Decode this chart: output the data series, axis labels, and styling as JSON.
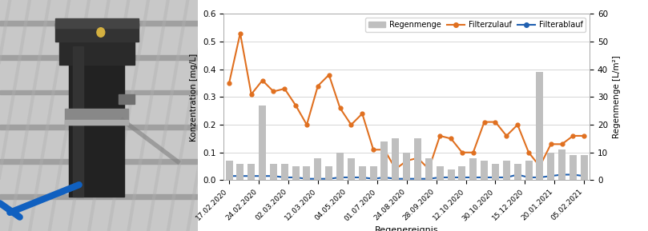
{
  "x_labels": [
    "17.02.2020",
    "24.02.2020",
    "02.03.2020",
    "12.03.2020",
    "04.05.2020",
    "01.07.2020",
    "24.08.2020",
    "28.09.2020",
    "12.10.2020",
    "30.10.2020",
    "15.12.2020",
    "20.01.2021",
    "05.02.2021"
  ],
  "filterzulauf": [
    0.35,
    0.53,
    0.31,
    0.36,
    0.32,
    0.33,
    0.27,
    0.2,
    0.34,
    0.38,
    0.26,
    0.2,
    0.24,
    0.11,
    0.11,
    0.04,
    0.07,
    0.08,
    0.04,
    0.16,
    0.15,
    0.1,
    0.1,
    0.21,
    0.21,
    0.16,
    0.2,
    0.1,
    0.05,
    0.13,
    0.13,
    0.16,
    0.16
  ],
  "filterablauf": [
    0.015,
    0.015,
    0.015,
    0.015,
    0.015,
    0.01,
    0.01,
    0.005,
    0.005,
    0.005,
    0.01,
    0.01,
    0.01,
    0.005,
    0.01,
    0.005,
    0.005,
    0.005,
    0.005,
    0.01,
    0.01,
    0.01,
    0.01,
    0.01,
    0.01,
    0.01,
    0.02,
    0.01,
    0.01,
    0.015,
    0.02,
    0.02,
    0.015
  ],
  "regenmenge": [
    7,
    6,
    6,
    27,
    6,
    6,
    5,
    5,
    8,
    5,
    10,
    8,
    5,
    5,
    14,
    15,
    10,
    15,
    8,
    5,
    4,
    5,
    8,
    7,
    6,
    7,
    6,
    7,
    39,
    10,
    11,
    9,
    9
  ],
  "bar_color": "#bfbfbf",
  "filterzulauf_color": "#e07020",
  "filterablauf_color": "#2060b0",
  "ylabel_left": "Konzentration [mg/L]",
  "ylabel_right": "Regenmenge [L/m²]",
  "xlabel": "Regenereignis",
  "ylim_left": [
    0,
    0.6
  ],
  "ylim_right": [
    0,
    60
  ],
  "legend_labels": [
    "Regenmenge",
    "Filterzulauf",
    "Filterablauf"
  ],
  "photo_bg_colors": {
    "wall_light": "#d8d8d8",
    "wall_mid": "#b8b8b8",
    "pipe_dark": "#2a2a2a",
    "pipe_metal": "#606060",
    "blue_tube": "#1060c0",
    "stripe_dark": "#888888"
  }
}
